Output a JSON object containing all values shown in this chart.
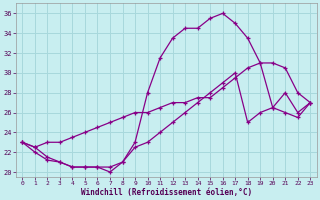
{
  "xlabel": "Windchill (Refroidissement éolien,°C)",
  "bg_color": "#c8eef0",
  "grid_color": "#a8d8dc",
  "line_color": "#880088",
  "xlim": [
    -0.5,
    23.5
  ],
  "ylim": [
    19.5,
    37.0
  ],
  "xticks": [
    0,
    1,
    2,
    3,
    4,
    5,
    6,
    7,
    8,
    9,
    10,
    11,
    12,
    13,
    14,
    15,
    16,
    17,
    18,
    19,
    20,
    21,
    22,
    23
  ],
  "yticks": [
    20,
    22,
    24,
    26,
    28,
    30,
    32,
    34,
    36
  ],
  "curve1_x": [
    0,
    1,
    2,
    3,
    4,
    5,
    6,
    7,
    8,
    9,
    10,
    11,
    12,
    13,
    14,
    15,
    16,
    17,
    18,
    19,
    20,
    21,
    22,
    23
  ],
  "curve1_y": [
    23.0,
    22.0,
    21.2,
    21.0,
    20.5,
    20.5,
    20.5,
    20.0,
    21.0,
    23.0,
    28.0,
    31.5,
    33.5,
    34.5,
    34.5,
    35.5,
    36.0,
    35.0,
    33.5,
    31.0,
    31.0,
    30.5,
    28.0,
    27.0
  ],
  "curve2_x": [
    0,
    1,
    2,
    3,
    4,
    5,
    6,
    7,
    8,
    9,
    10,
    11,
    12,
    13,
    14,
    15,
    16,
    17,
    18,
    19,
    20,
    21,
    22,
    23
  ],
  "curve2_y": [
    23.0,
    22.5,
    23.0,
    23.0,
    23.5,
    24.0,
    24.5,
    25.0,
    25.5,
    26.0,
    26.0,
    26.5,
    27.0,
    27.0,
    27.5,
    27.5,
    28.5,
    29.5,
    30.5,
    31.0,
    26.5,
    28.0,
    26.0,
    27.0
  ],
  "curve3_x": [
    0,
    1,
    2,
    3,
    4,
    5,
    6,
    7,
    8,
    9,
    10,
    11,
    12,
    13,
    14,
    15,
    16,
    17,
    18,
    19,
    20,
    21,
    22,
    23
  ],
  "curve3_y": [
    23.0,
    22.5,
    21.5,
    21.0,
    20.5,
    20.5,
    20.5,
    20.5,
    21.0,
    22.5,
    23.0,
    24.0,
    25.0,
    26.0,
    27.0,
    28.0,
    29.0,
    30.0,
    25.0,
    26.0,
    26.5,
    26.0,
    25.5,
    27.0
  ]
}
